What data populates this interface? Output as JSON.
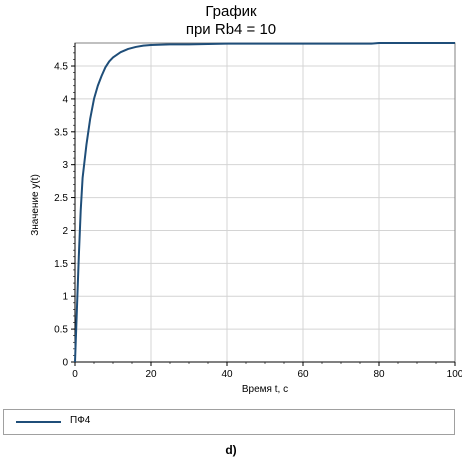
{
  "chart_data": {
    "type": "line",
    "title": "График",
    "subtitle": "при Rb4 = 10",
    "xlabel": "Время t, с",
    "ylabel": "Значение y(t)",
    "xlim": [
      0,
      100
    ],
    "ylim": [
      0,
      4.85
    ],
    "xticks": [
      "0",
      "20",
      "40",
      "60",
      "80",
      "100"
    ],
    "yticks": [
      "0",
      "0.5",
      "1",
      "1.5",
      "2",
      "2.5",
      "3",
      "3.5",
      "4",
      "4.5"
    ],
    "grid": true,
    "legend_position": "bottom",
    "series": [
      {
        "name": "ПФ4",
        "color": "#1f4e79",
        "x": [
          0,
          0.5,
          1,
          1.5,
          2,
          3,
          4,
          5,
          6,
          7,
          8,
          9,
          10,
          12,
          14,
          16,
          18,
          20,
          25,
          30,
          40,
          60,
          78,
          80,
          100
        ],
        "y": [
          0,
          0.8,
          1.6,
          2.3,
          2.8,
          3.3,
          3.7,
          4.0,
          4.2,
          4.35,
          4.48,
          4.57,
          4.63,
          4.71,
          4.76,
          4.79,
          4.81,
          4.82,
          4.83,
          4.83,
          4.84,
          4.84,
          4.84,
          4.85,
          4.85
        ]
      }
    ]
  },
  "caption": "d)"
}
